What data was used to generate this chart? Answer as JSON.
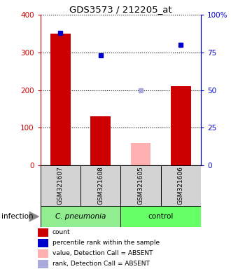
{
  "title": "GDS3573 / 212205_at",
  "samples": [
    "GSM321607",
    "GSM321608",
    "GSM321605",
    "GSM321606"
  ],
  "count_values": [
    350,
    130,
    null,
    210
  ],
  "count_absent_values": [
    null,
    null,
    60,
    null
  ],
  "rank_pct_values": [
    88,
    73,
    null,
    80
  ],
  "rank_pct_absent": [
    null,
    null,
    50,
    null
  ],
  "ylim_left": [
    0,
    400
  ],
  "ylim_right": [
    0,
    100
  ],
  "yticks_left": [
    0,
    100,
    200,
    300,
    400
  ],
  "yticks_right": [
    0,
    25,
    50,
    75,
    100
  ],
  "ytick_labels_right": [
    "0",
    "25",
    "50",
    "75",
    "100%"
  ],
  "left_axis_color": "#cc0000",
  "right_axis_color": "#0000cc",
  "bar_color_present": "#cc0000",
  "bar_color_absent": "#ffb0b0",
  "rank_color_present": "#0000cc",
  "rank_color_absent": "#aaaadd",
  "legend_colors": [
    "#cc0000",
    "#0000cc",
    "#ffb0b0",
    "#aaaadd"
  ],
  "legend_labels": [
    "count",
    "percentile rank within the sample",
    "value, Detection Call = ABSENT",
    "rank, Detection Call = ABSENT"
  ],
  "group1_label": "C. pneumonia",
  "group2_label": "control",
  "group1_color": "#90ee90",
  "group2_color": "#66ff66",
  "infection_label": "infection",
  "bar_width": 0.5,
  "rank_marker_size": 5
}
